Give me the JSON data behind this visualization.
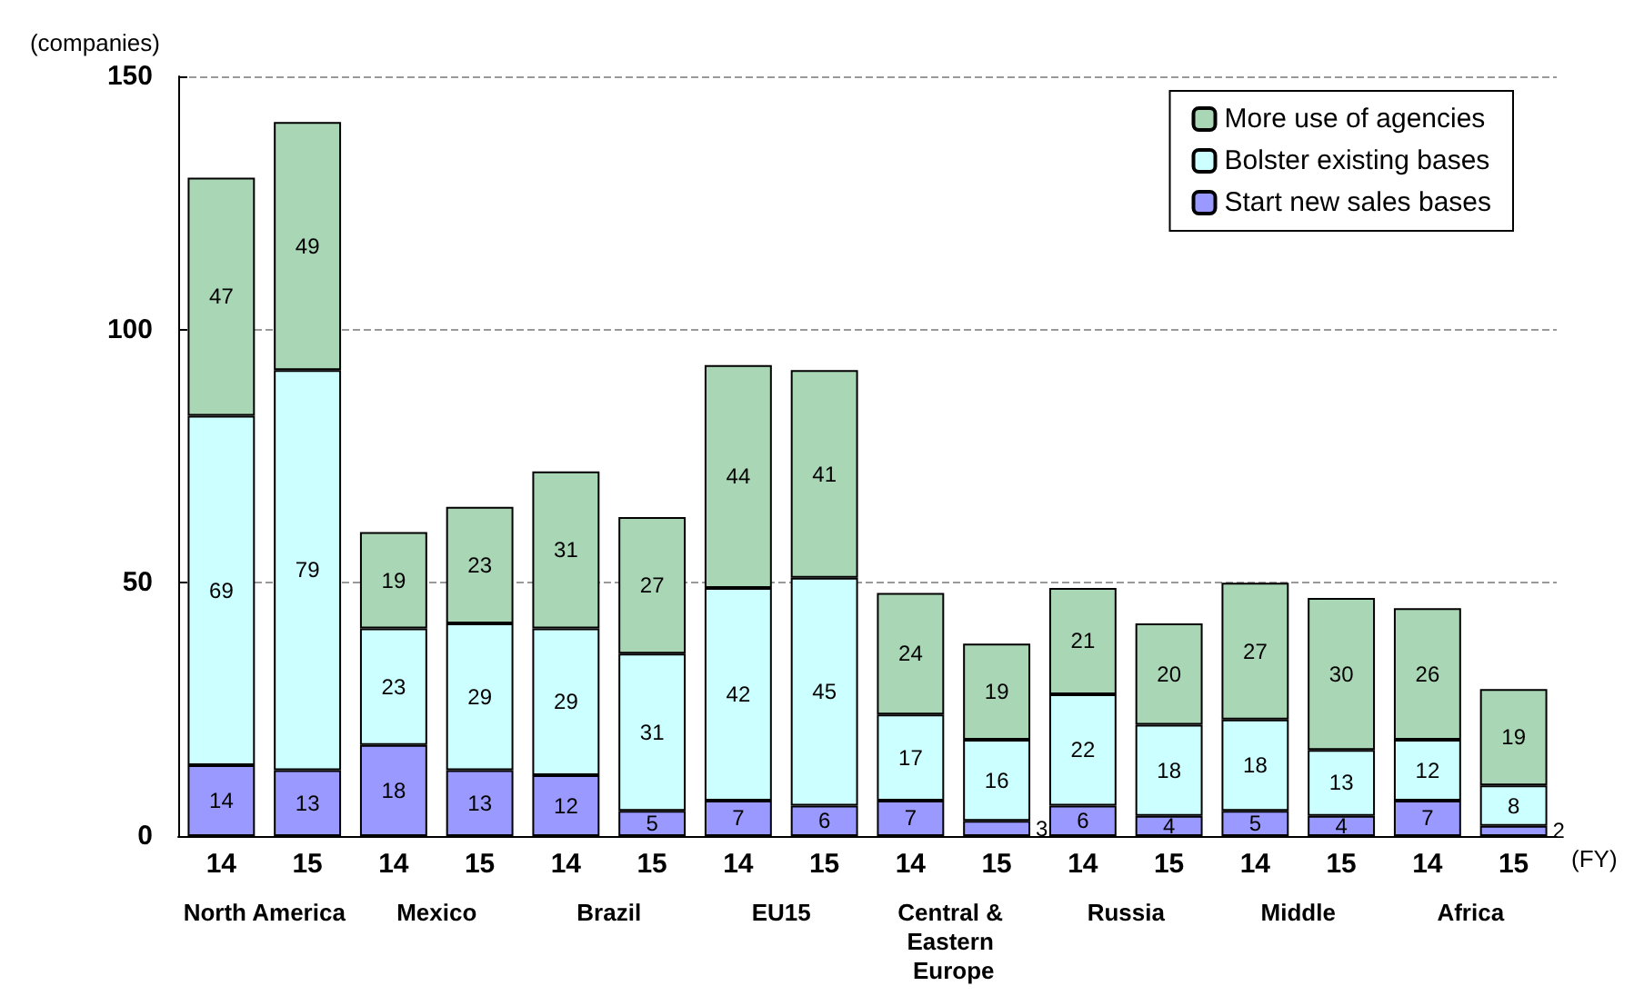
{
  "chart_data": {
    "type": "bar",
    "stacked": true,
    "ylabel": "(companies)",
    "xlabel": "(FY)",
    "categories": [
      "14",
      "15",
      "14",
      "15",
      "14",
      "15",
      "14",
      "15",
      "14",
      "15",
      "14",
      "15",
      "14",
      "15",
      "14",
      "15"
    ],
    "series": [
      {
        "name": "Start new sales bases",
        "color": "#9999ff",
        "values": [
          14,
          13,
          18,
          13,
          12,
          5,
          7,
          6,
          7,
          3,
          6,
          4,
          5,
          4,
          7,
          2
        ]
      },
      {
        "name": "Bolster existing bases",
        "color": "#ccffff",
        "values": [
          69,
          79,
          23,
          29,
          29,
          31,
          42,
          45,
          17,
          16,
          22,
          18,
          18,
          13,
          12,
          8
        ]
      },
      {
        "name": "More use of agencies",
        "color": "#a9d6b4",
        "values": [
          47,
          49,
          19,
          23,
          31,
          27,
          44,
          41,
          24,
          19,
          21,
          20,
          27,
          30,
          26,
          19
        ]
      }
    ],
    "annotations": [
      "North America",
      "Mexico",
      "Brazil",
      "EU15",
      "Central & Eastern Europe",
      "Russia",
      "Middle",
      "Africa"
    ],
    "ylim": [
      0,
      150
    ],
    "yticks": [
      0,
      50,
      100,
      150
    ],
    "grid": "y",
    "legend": "top right",
    "data_labels": true
  }
}
